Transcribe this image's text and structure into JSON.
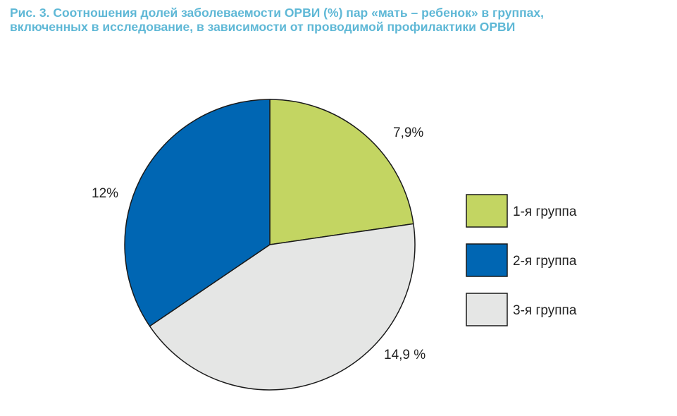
{
  "title_lines": [
    "Рис. 3. Соотношения долей заболеваемости ОРВИ (%) пар «мать – ребенок» в группах,",
    "включенных в исследование, в зависимости от проводимой профилактики ОРВИ"
  ],
  "chart_data": {
    "type": "pie",
    "title": "Рис. 3. Соотношения долей заболеваемости ОРВИ (%) пар «мать – ребенок» в группах, включенных в исследование, в зависимости от проводимой профилактики ОРВИ",
    "slices": [
      {
        "name": "1-я группа",
        "value": 7.9,
        "label": "7,9%",
        "color": "#c3d562"
      },
      {
        "name": "3-я группа",
        "value": 14.9,
        "label": "14,9 %",
        "color": "#e5e6e5"
      },
      {
        "name": "2-я группа",
        "value": 12,
        "label": "12%",
        "color": "#0066b3"
      }
    ],
    "legend": [
      {
        "name": "1-я группа",
        "color": "#c3d562"
      },
      {
        "name": "2-я группа",
        "color": "#0066b3"
      },
      {
        "name": "3-я группа",
        "color": "#e5e6e5"
      }
    ],
    "legend_position": "right",
    "start": "top",
    "direction": "clockwise"
  }
}
